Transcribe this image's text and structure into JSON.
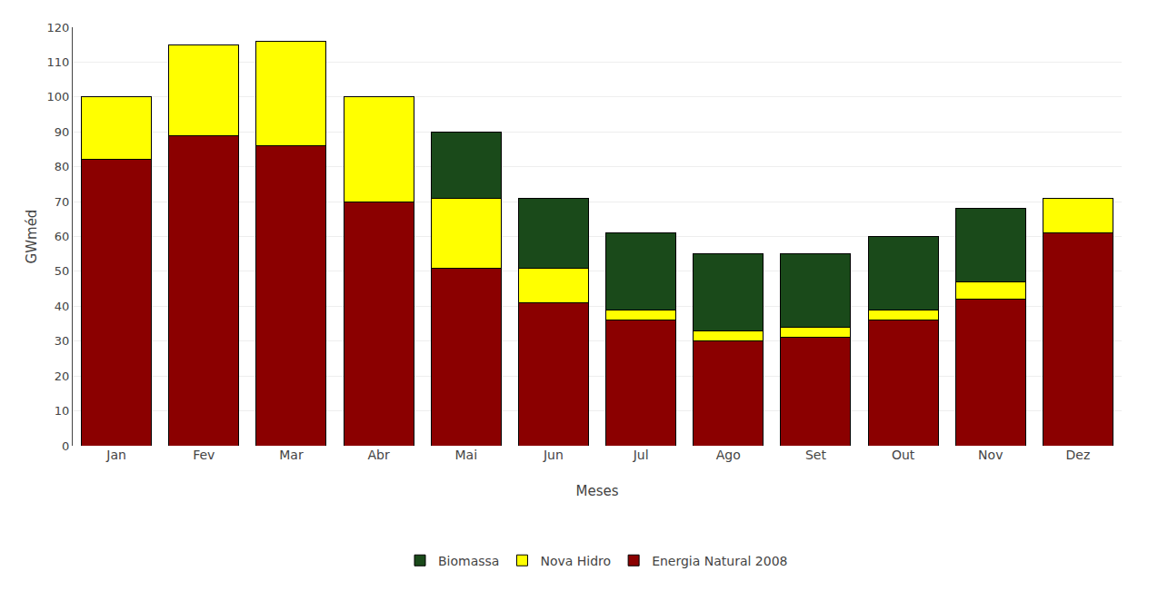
{
  "chart_data": {
    "type": "bar",
    "stacked": true,
    "categories": [
      "Jan",
      "Fev",
      "Mar",
      "Abr",
      "Mai",
      "Jun",
      "Jul",
      "Ago",
      "Set",
      "Out",
      "Nov",
      "Dez"
    ],
    "series": [
      {
        "name": "Energia Natural 2008",
        "color": "#8B0000",
        "values": [
          82,
          89,
          86,
          70,
          51,
          41,
          36,
          30,
          31,
          36,
          42,
          61
        ]
      },
      {
        "name": "Nova Hidro",
        "color": "#FFFF00",
        "values": [
          18,
          26,
          30,
          30,
          20,
          10,
          3,
          3,
          3,
          3,
          5,
          10
        ]
      },
      {
        "name": "Biomassa",
        "color": "#1A4A1A",
        "values": [
          0,
          0,
          0,
          0,
          19,
          20,
          22,
          22,
          21,
          21,
          21,
          0
        ]
      }
    ],
    "xlabel": "Meses",
    "ylabel": "GWméd",
    "ylim": [
      0,
      120
    ],
    "yticks": [
      0,
      10,
      20,
      30,
      40,
      50,
      60,
      70,
      80,
      90,
      100,
      110,
      120
    ],
    "grid": true,
    "legend": "bottom"
  }
}
